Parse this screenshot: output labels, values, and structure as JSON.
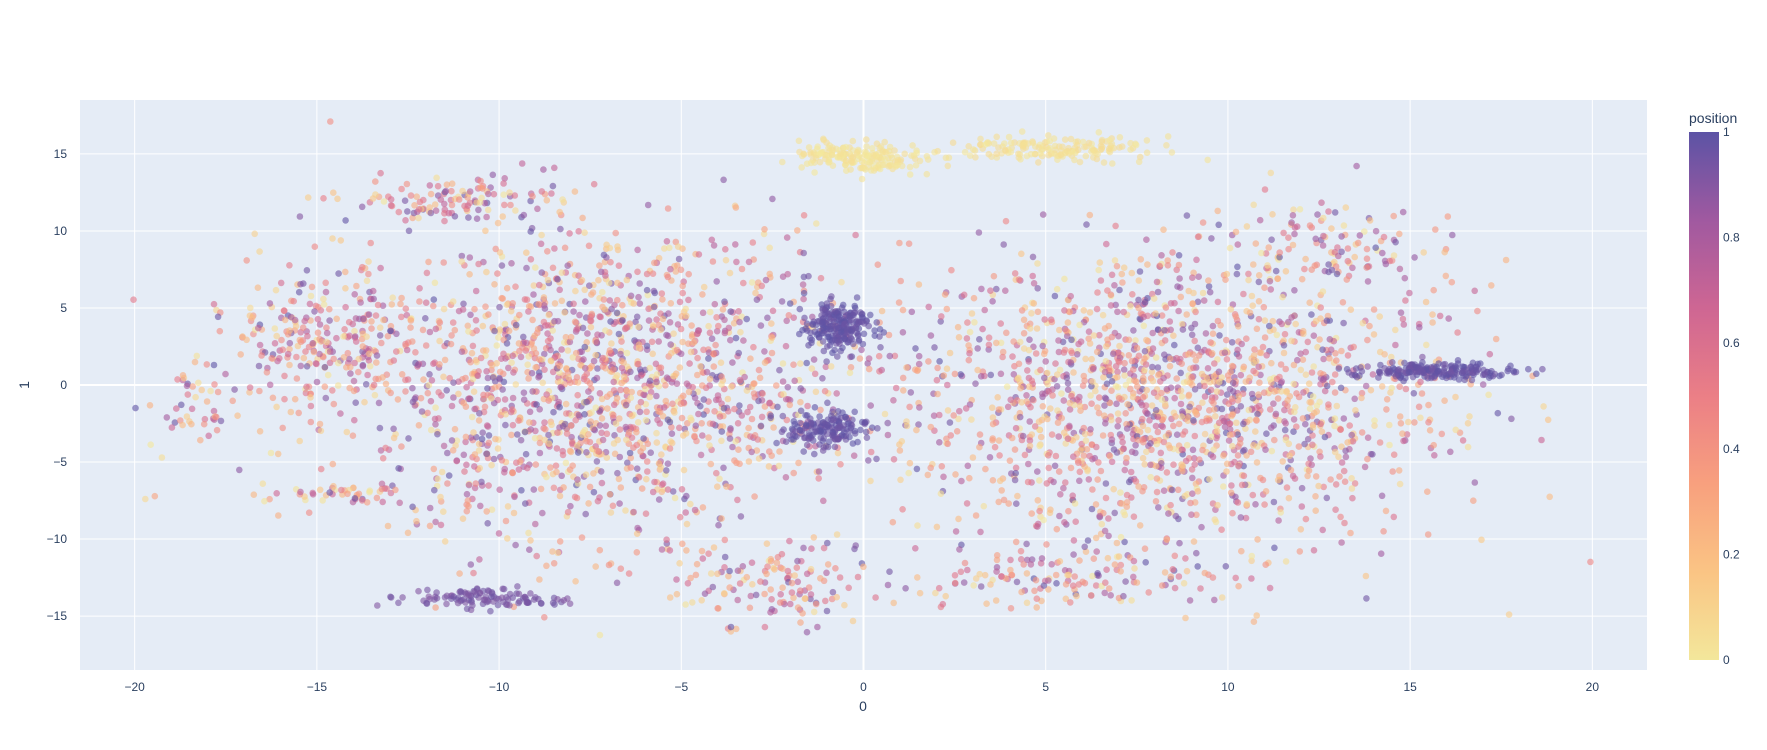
{
  "chart_data": {
    "type": "scatter",
    "title": "",
    "xlabel": "0",
    "ylabel": "1",
    "xlim": [
      -21.5,
      21.5
    ],
    "ylim": [
      -18.5,
      18.5
    ],
    "xticks": [
      -20,
      -15,
      -10,
      -5,
      0,
      5,
      10,
      15,
      20
    ],
    "xtick_labels": [
      "−20",
      "−15",
      "−10",
      "−5",
      "0",
      "5",
      "10",
      "15",
      "20"
    ],
    "yticks": [
      -15,
      -10,
      -5,
      0,
      5,
      10,
      15
    ],
    "ytick_labels": [
      "−15",
      "−10",
      "−5",
      "0",
      "5",
      "10",
      "15"
    ],
    "grid": true,
    "plot_background": "#e5ecf6",
    "marker_opacity": 0.6,
    "colorbar": {
      "title": "position",
      "range": [
        0,
        1
      ],
      "ticks": [
        0,
        0.2,
        0.4,
        0.6,
        0.8,
        1
      ],
      "tick_labels": [
        "0",
        "0.2",
        "0.4",
        "0.6",
        "0.8",
        "1"
      ],
      "colorscale": [
        "#f3e79b",
        "#fac484",
        "#f8a07e",
        "#eb7f86",
        "#ce6693",
        "#a059a0",
        "#5c53a5"
      ]
    },
    "clusters": [
      {
        "name": "left-mass",
        "cx": -7.5,
        "cy": 0.0,
        "sx": 3.6,
        "sy": 4.8,
        "n": 1700,
        "color": "mixed"
      },
      {
        "name": "right-mass",
        "cx": 8.5,
        "cy": -1.0,
        "sx": 3.6,
        "sy": 4.6,
        "n": 1700,
        "color": "mixed"
      },
      {
        "name": "left-lobe",
        "cx": -15.0,
        "cy": 3.0,
        "sx": 1.4,
        "sy": 2.0,
        "n": 220,
        "color": "mixed"
      },
      {
        "name": "upper-left-arm",
        "cx": -11.0,
        "cy": 12.0,
        "sx": 1.6,
        "sy": 0.8,
        "n": 120,
        "color": "mixed"
      },
      {
        "name": "far-left-tail",
        "cx": -18.3,
        "cy": -1.5,
        "sx": 0.6,
        "sy": 1.2,
        "n": 50,
        "color": "mixed"
      },
      {
        "name": "lower-left-arm",
        "cx": -14.5,
        "cy": -7.0,
        "sx": 1.3,
        "sy": 0.3,
        "n": 45,
        "color": "mixed"
      },
      {
        "name": "lower-center",
        "cx": -2.5,
        "cy": -13.0,
        "sx": 1.4,
        "sy": 1.4,
        "n": 130,
        "color": "mixed"
      },
      {
        "name": "bottom-center-right",
        "cx": 5.5,
        "cy": -12.5,
        "sx": 2.2,
        "sy": 1.0,
        "n": 140,
        "color": "mixed"
      },
      {
        "name": "right-far-arm",
        "cx": 13.0,
        "cy": 9.0,
        "sx": 1.8,
        "sy": 1.5,
        "n": 110,
        "color": "mixed"
      },
      {
        "name": "upper-yellow-left",
        "cx": -0.1,
        "cy": 14.8,
        "sx": 0.9,
        "sy": 0.5,
        "n": 180,
        "color": 0.02
      },
      {
        "name": "upper-yellow-right",
        "cx": 5.3,
        "cy": 15.3,
        "sx": 1.3,
        "sy": 0.4,
        "n": 160,
        "color": 0.03
      },
      {
        "name": "purple-blob-upper",
        "cx": -0.7,
        "cy": 3.7,
        "sx": 0.45,
        "sy": 0.8,
        "n": 220,
        "color": 0.98
      },
      {
        "name": "purple-blob-lower",
        "cx": -1.1,
        "cy": -2.8,
        "sx": 0.6,
        "sy": 0.6,
        "n": 160,
        "color": 0.97
      },
      {
        "name": "purple-streak-right",
        "cx": 15.8,
        "cy": 0.9,
        "sx": 1.1,
        "sy": 0.25,
        "n": 200,
        "color": 0.97
      },
      {
        "name": "purple-streak-lower-left",
        "cx": -10.5,
        "cy": -13.8,
        "sx": 1.3,
        "sy": 0.3,
        "n": 110,
        "color": 0.93
      }
    ]
  }
}
